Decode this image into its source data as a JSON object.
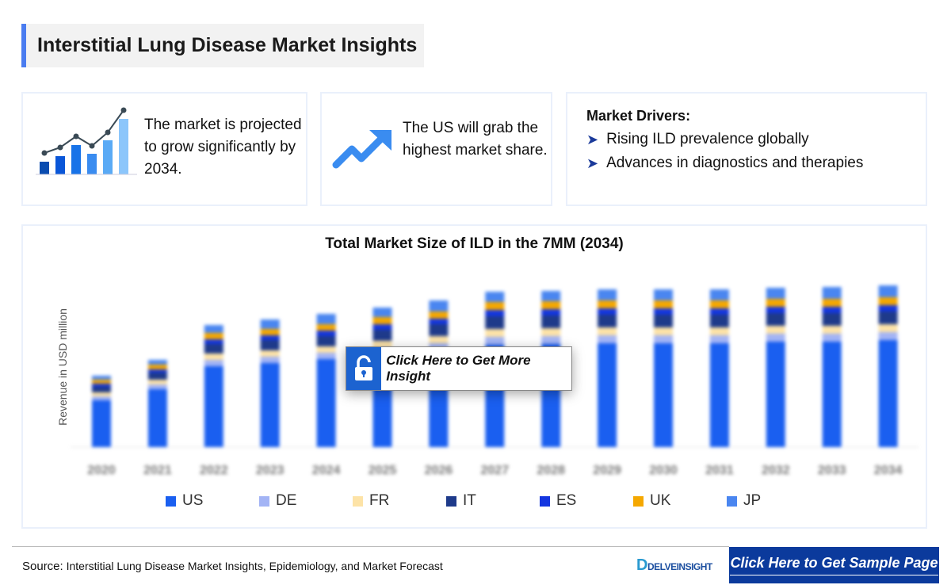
{
  "header": {
    "title": "Interstitial Lung Disease Market Insights"
  },
  "cards": {
    "growth_text": "The market is projected to grow significantly by 2034.",
    "us_text": "The US will grab the highest market share.",
    "drivers_title": "Market Drivers:",
    "drivers": [
      "Rising ILD prevalence globally",
      "Advances in diagnostics and therapies"
    ]
  },
  "overlay": {
    "insight_button": "Click Here to Get More Insight",
    "icon": "unlock-icon"
  },
  "footer": {
    "source_label": "Source:",
    "source_text": "Interstitial Lung Disease Market Insights, Epidemiology, and Market Forecast",
    "logo": "DELVEINSIGHT",
    "sample_button": "Click Here to Get Sample Page"
  },
  "colors": {
    "accent": "#4a7cf0",
    "button": "#0b3a9c"
  },
  "chart_data": {
    "type": "bar",
    "stacked": true,
    "title": "Total Market Size of ILD in the 7MM (2034)",
    "xlabel": "",
    "ylabel": "Revenue in USD million",
    "y_ticks_shown": false,
    "grid": false,
    "legend_position": "bottom",
    "categories": [
      "2020",
      "2021",
      "2022",
      "2023",
      "2024",
      "2025",
      "2026",
      "2027",
      "2028",
      "2029",
      "2030",
      "2031",
      "2032",
      "2033",
      "2034"
    ],
    "series": [
      {
        "name": "US",
        "color": "#1a5ff0",
        "values": [
          59,
          73,
          102,
          106,
          111,
          116,
          122,
          129,
          130,
          131,
          131,
          131,
          133,
          133,
          135
        ]
      },
      {
        "name": "DE",
        "color": "#a3b4f5",
        "values": [
          5,
          6,
          8,
          8,
          8,
          9,
          9,
          10,
          10,
          10,
          10,
          10,
          10,
          10,
          10
        ]
      },
      {
        "name": "FR",
        "color": "#fde3a7",
        "values": [
          5,
          6,
          8,
          8,
          8,
          9,
          9,
          10,
          10,
          10,
          10,
          10,
          10,
          10,
          10
        ]
      },
      {
        "name": "IT",
        "color": "#1e3a8a",
        "values": [
          7,
          9,
          12,
          13,
          13,
          14,
          15,
          16,
          16,
          16,
          16,
          16,
          16,
          16,
          16
        ]
      },
      {
        "name": "ES",
        "color": "#1436e0",
        "values": [
          4,
          4,
          6,
          6,
          7,
          7,
          7,
          8,
          8,
          8,
          8,
          8,
          8,
          8,
          8
        ]
      },
      {
        "name": "UK",
        "color": "#f5a800",
        "values": [
          5,
          6,
          8,
          8,
          8,
          9,
          9,
          10,
          10,
          10,
          10,
          10,
          10,
          10,
          10
        ]
      },
      {
        "name": "JP",
        "color": "#4a86f0",
        "values": [
          5,
          6,
          10,
          12,
          13,
          12,
          14,
          13,
          13,
          14,
          14,
          14,
          14,
          15,
          15
        ]
      }
    ]
  }
}
